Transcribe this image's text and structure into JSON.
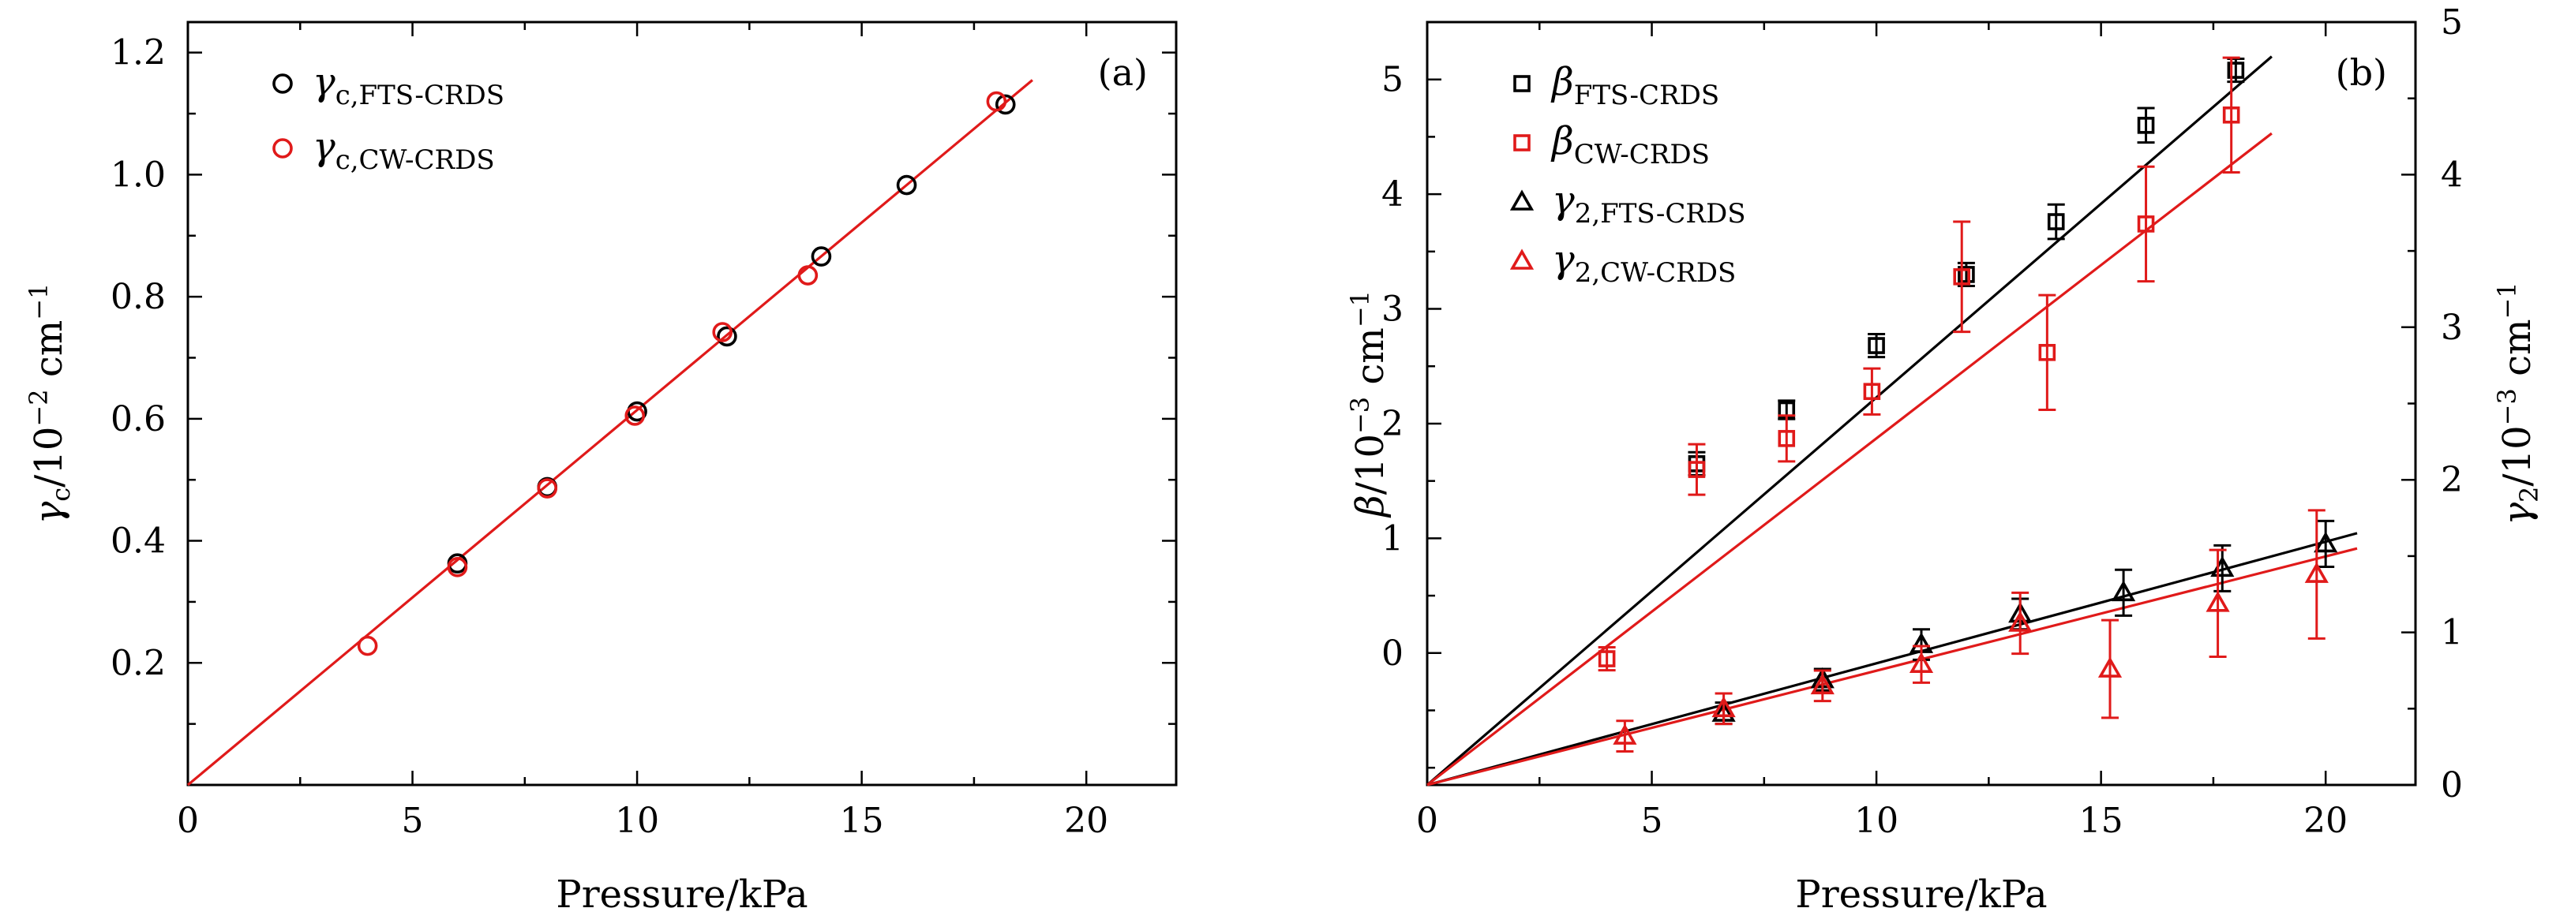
{
  "colors": {
    "black": "#000000",
    "red": "#e01a1a"
  },
  "chart_data": [
    {
      "panel": "(a)",
      "type": "scatter",
      "xlabel": "Pressure/kPa",
      "ylabel": {
        "main": "γ",
        "sub": "c",
        "tail": "/10",
        "sup": "−2",
        "unit": " cm",
        "unitsup": "−1"
      },
      "xlim": [
        0,
        22
      ],
      "ylim": [
        0,
        1.25
      ],
      "xticks": [
        0,
        5,
        10,
        15,
        20
      ],
      "yticks": [
        0.2,
        0.4,
        0.6,
        0.8,
        1.0,
        1.2
      ],
      "ytick_labels": [
        "0.2",
        "0.4",
        "0.6",
        "0.8",
        "1.0",
        "1.2"
      ],
      "legend_position": "top-left",
      "series": [
        {
          "name": {
            "main": "γ",
            "sub": "c,FTS-CRDS"
          },
          "color": "black",
          "marker": "circle",
          "x": [
            6.0,
            8.0,
            10.0,
            12.0,
            14.1,
            16.0,
            18.2
          ],
          "y": [
            0.363,
            0.488,
            0.612,
            0.735,
            0.866,
            0.983,
            1.115
          ]
        },
        {
          "name": {
            "main": "γ",
            "sub": "c,CW-CRDS"
          },
          "color": "red",
          "marker": "circle",
          "x": [
            4.0,
            6.0,
            8.0,
            9.95,
            11.9,
            13.8,
            18.0
          ],
          "y": [
            0.228,
            0.357,
            0.486,
            0.605,
            0.742,
            0.835,
            1.12
          ]
        }
      ],
      "fit_lines": [
        {
          "color": "red",
          "x": [
            0,
            18.8
          ],
          "y": [
            0,
            1.155
          ]
        }
      ]
    },
    {
      "panel": "(b)",
      "type": "scatter",
      "xlabel": "Pressure/kPa",
      "ylabel_left": {
        "main": "β",
        "tail": "/10",
        "sup": "−3",
        "unit": " cm",
        "unitsup": "−1"
      },
      "ylabel_right": {
        "main": "γ",
        "sub": "2",
        "tail": "/10",
        "sup": "−3",
        "unit": " cm",
        "unitsup": "−1"
      },
      "xlim": [
        0,
        22
      ],
      "ylim_left": [
        -1.15,
        5.5
      ],
      "ylim_right": [
        0,
        5
      ],
      "xticks": [
        0,
        5,
        10,
        15,
        20
      ],
      "yticks_left": [
        0,
        1,
        2,
        3,
        4,
        5
      ],
      "yticks_right": [
        0,
        1,
        2,
        3,
        4,
        5
      ],
      "legend_position": "top-left",
      "series": [
        {
          "name": {
            "main": "β",
            "sub": "FTS-CRDS"
          },
          "color": "black",
          "marker": "square",
          "axis": "left",
          "x": [
            6.0,
            8.0,
            10.0,
            12.0,
            14.0,
            16.0,
            18.0
          ],
          "y": [
            1.65,
            2.12,
            2.68,
            3.3,
            3.76,
            4.6,
            5.08
          ],
          "err": [
            0.1,
            0.08,
            0.1,
            0.1,
            0.15,
            0.15,
            0.1
          ]
        },
        {
          "name": {
            "main": "β",
            "sub": "CW-CRDS"
          },
          "color": "red",
          "marker": "square",
          "axis": "left",
          "x": [
            4.0,
            6.0,
            8.0,
            9.9,
            11.9,
            13.8,
            16.0,
            17.9
          ],
          "y": [
            -0.05,
            1.6,
            1.87,
            2.28,
            3.28,
            2.62,
            3.74,
            4.69
          ],
          "err": [
            0.1,
            0.22,
            0.2,
            0.2,
            0.48,
            0.5,
            0.5,
            0.5
          ]
        },
        {
          "name": {
            "main": "γ",
            "sub": "2,FTS-CRDS"
          },
          "color": "black",
          "marker": "triangle",
          "axis": "right",
          "x": [
            6.6,
            8.8,
            11.0,
            13.2,
            15.5,
            17.7,
            20.0
          ],
          "y": [
            0.47,
            0.69,
            0.92,
            1.12,
            1.26,
            1.42,
            1.58
          ],
          "err": [
            0.07,
            0.07,
            0.1,
            0.1,
            0.15,
            0.15,
            0.15
          ]
        },
        {
          "name": {
            "main": "γ",
            "sub": "2,CW-CRDS"
          },
          "color": "red",
          "marker": "triangle",
          "axis": "right",
          "x": [
            4.4,
            6.6,
            8.8,
            11.0,
            13.2,
            15.2,
            17.6,
            19.8
          ],
          "y": [
            0.32,
            0.5,
            0.65,
            0.79,
            1.06,
            0.76,
            1.19,
            1.38
          ],
          "err": [
            0.1,
            0.1,
            0.1,
            0.12,
            0.2,
            0.32,
            0.35,
            0.42
          ]
        }
      ],
      "fit_lines": [
        {
          "color": "black",
          "axis": "left",
          "x": [
            0,
            18.8
          ],
          "y": [
            -1.15,
            5.2
          ]
        },
        {
          "color": "red",
          "axis": "left",
          "x": [
            0,
            18.8
          ],
          "y": [
            -1.15,
            4.53
          ]
        },
        {
          "color": "black",
          "axis": "right",
          "x": [
            0,
            20.7
          ],
          "y": [
            0,
            1.65
          ]
        },
        {
          "color": "red",
          "axis": "right",
          "x": [
            0,
            20.7
          ],
          "y": [
            0,
            1.55
          ]
        }
      ]
    }
  ]
}
